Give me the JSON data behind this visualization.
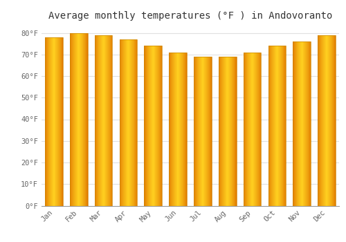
{
  "title": "Average monthly temperatures (°F ) in Andovoranto",
  "months": [
    "Jan",
    "Feb",
    "Mar",
    "Apr",
    "May",
    "Jun",
    "Jul",
    "Aug",
    "Sep",
    "Oct",
    "Nov",
    "Dec"
  ],
  "values": [
    78,
    80,
    79,
    77,
    74,
    71,
    69,
    69,
    71,
    74,
    76,
    79
  ],
  "bar_color_center": "#FFDD44",
  "bar_color_edge": "#E07800",
  "bar_edge_color": "#CC8800",
  "background_color": "#FFFFFF",
  "grid_color": "#E0E0E0",
  "title_fontsize": 10,
  "tick_fontsize": 7.5,
  "ylim": [
    0,
    84
  ],
  "yticks": [
    0,
    10,
    20,
    30,
    40,
    50,
    60,
    70,
    80
  ],
  "ylabel_format": "°F"
}
